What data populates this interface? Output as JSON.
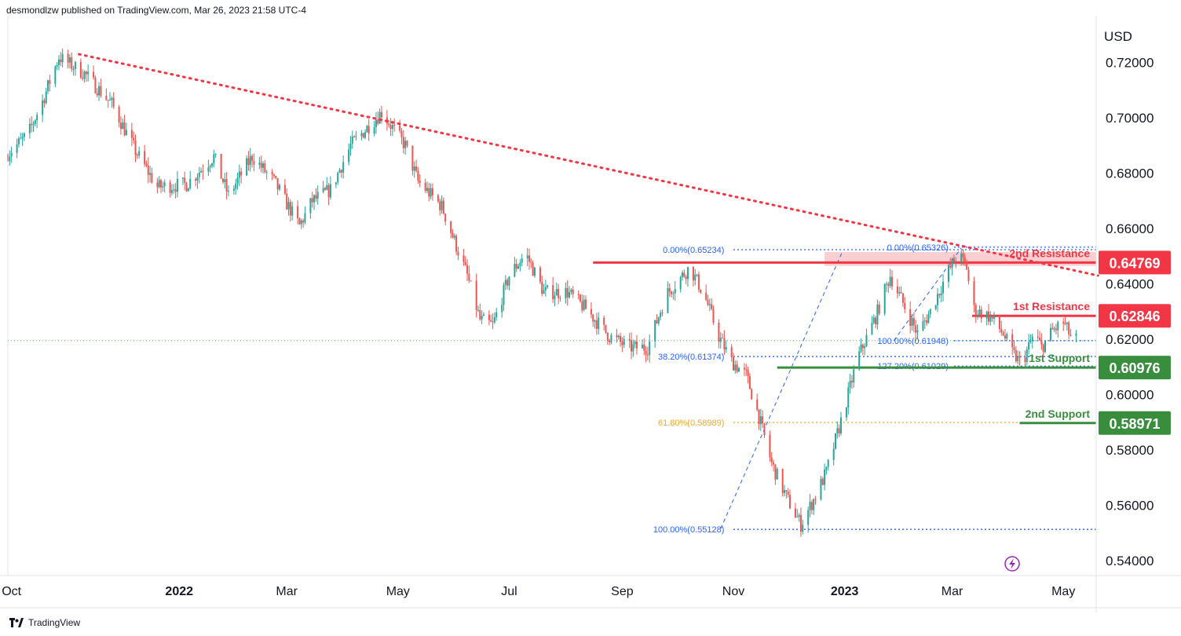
{
  "header": {
    "text": "desmondlzw published on TradingView.com, Mar 26, 2023 21:58 UTC-4"
  },
  "footer": {
    "brand": "TradingView"
  },
  "chart_data": {
    "type": "candlestick",
    "currency_label": "USD",
    "ylim": [
      0.5346,
      0.7369
    ],
    "y_ticks": [
      "0.72000",
      "0.70000",
      "0.68000",
      "0.66000",
      "0.64000",
      "0.62000",
      "0.60000",
      "0.58000",
      "0.56000",
      "0.54000"
    ],
    "x_ticks": [
      "Oct",
      "2022",
      "Mar",
      "May",
      "Jul",
      "Sep",
      "Nov",
      "2023",
      "Mar",
      "May"
    ],
    "x_tick_dates": [
      "2021-10-01",
      "2022-01-01",
      "2022-03-01",
      "2022-05-01",
      "2022-07-01",
      "2022-09-01",
      "2022-11-01",
      "2023-01-01",
      "2023-03-01",
      "2023-05-01"
    ],
    "x_range": [
      "2021-09-29",
      "2023-05-19"
    ],
    "colors": {
      "up": "#26a69a",
      "down": "#ef5350",
      "resistance": "#f23645",
      "support": "#388e3c",
      "fib": "#2962ff",
      "fib_golden": "#f5a623",
      "trendline": "#f23645",
      "zone": "#f8c7c9"
    },
    "price_path": [
      [
        "2021-09-29",
        0.687
      ],
      [
        "2021-10-10",
        0.694
      ],
      [
        "2021-10-18",
        0.706
      ],
      [
        "2021-10-27",
        0.722
      ],
      [
        "2021-11-10",
        0.716
      ],
      [
        "2021-11-25",
        0.705
      ],
      [
        "2021-12-08",
        0.688
      ],
      [
        "2021-12-20",
        0.675
      ],
      [
        "2022-01-05",
        0.676
      ],
      [
        "2022-01-20",
        0.686
      ],
      [
        "2022-01-28",
        0.672
      ],
      [
        "2022-02-10",
        0.686
      ],
      [
        "2022-02-22",
        0.677
      ],
      [
        "2022-03-08",
        0.661
      ],
      [
        "2022-03-15",
        0.67
      ],
      [
        "2022-03-25",
        0.674
      ],
      [
        "2022-04-05",
        0.69
      ],
      [
        "2022-04-15",
        0.697
      ],
      [
        "2022-04-22",
        0.702
      ],
      [
        "2022-05-05",
        0.69
      ],
      [
        "2022-05-12",
        0.677
      ],
      [
        "2022-05-25",
        0.668
      ],
      [
        "2022-06-08",
        0.643
      ],
      [
        "2022-06-15",
        0.627
      ],
      [
        "2022-06-22",
        0.625
      ],
      [
        "2022-07-01",
        0.643
      ],
      [
        "2022-07-10",
        0.651
      ],
      [
        "2022-07-20",
        0.637
      ],
      [
        "2022-08-02",
        0.637
      ],
      [
        "2022-08-12",
        0.631
      ],
      [
        "2022-08-25",
        0.621
      ],
      [
        "2022-09-05",
        0.617
      ],
      [
        "2022-09-15",
        0.617
      ],
      [
        "2022-09-25",
        0.636
      ],
      [
        "2022-10-08",
        0.646
      ],
      [
        "2022-10-16",
        0.636
      ],
      [
        "2022-10-24",
        0.621
      ],
      [
        "2022-10-31",
        0.612
      ],
      [
        "2022-11-08",
        0.607
      ],
      [
        "2022-11-15",
        0.592
      ],
      [
        "2022-11-22",
        0.575
      ],
      [
        "2022-11-30",
        0.563
      ],
      [
        "2022-12-08",
        0.553
      ],
      [
        "2022-12-15",
        0.562
      ],
      [
        "2022-12-22",
        0.572
      ],
      [
        "2023-01-01",
        0.595
      ],
      [
        "2023-01-08",
        0.613
      ],
      [
        "2023-01-18",
        0.628
      ],
      [
        "2023-01-26",
        0.643
      ],
      [
        "2023-02-02",
        0.633
      ],
      [
        "2023-02-10",
        0.622
      ],
      [
        "2023-02-17",
        0.63
      ],
      [
        "2023-02-25",
        0.642
      ],
      [
        "2023-03-04",
        0.651
      ],
      [
        "2023-03-09",
        0.646
      ],
      [
        "2023-03-12",
        0.631
      ],
      [
        "2023-03-22",
        0.628
      ],
      [
        "2023-03-29",
        0.622
      ],
      [
        "2023-04-03",
        0.615
      ],
      [
        "2023-04-08",
        0.611
      ],
      [
        "2023-04-15",
        0.622
      ],
      [
        "2023-04-19",
        0.617
      ],
      [
        "2023-04-25",
        0.623
      ],
      [
        "2023-05-01",
        0.626
      ],
      [
        "2023-05-05",
        0.621
      ],
      [
        "2023-05-08",
        0.62
      ]
    ],
    "last_price": 0.6195,
    "trendline": {
      "from": [
        "2021-11-07",
        0.723
      ],
      "to": [
        "2023-05-20",
        0.643
      ]
    },
    "resistance_zone": {
      "from": "2022-12-21",
      "low": 0.6465,
      "high": 0.6515
    },
    "levels": [
      {
        "name": "2nd Resistance",
        "value": 0.64769,
        "badge": "0.64769",
        "from": "2022-08-16",
        "kind": "resistance"
      },
      {
        "name": "1st Resistance",
        "value": 0.62846,
        "badge": "0.62846",
        "from": "2023-03-12",
        "kind": "resistance"
      },
      {
        "name": "1st Support",
        "value": 0.60976,
        "badge": "0.60976",
        "from": "2022-11-25",
        "kind": "support"
      },
      {
        "name": "2nd Support",
        "value": 0.58971,
        "badge": "0.58971",
        "from": "2023-04-07",
        "kind": "support"
      }
    ],
    "fib_levels": [
      {
        "label": "0.00%(0.65234)",
        "value": 0.65234,
        "label_end": "2022-10-27",
        "from": "2022-11-01",
        "color": "fib"
      },
      {
        "label": "38.20%(0.61374)",
        "value": 0.61374,
        "label_end": "2022-10-27",
        "from": "2022-11-01",
        "color": "fib"
      },
      {
        "label": "61.80%(0.58989)",
        "value": 0.58989,
        "label_end": "2022-10-27",
        "from": "2022-11-01",
        "color": "fib_golden"
      },
      {
        "label": "100.00%(0.55128)",
        "value": 0.55128,
        "label_end": "2022-10-27",
        "from": "2022-11-01",
        "color": "fib"
      },
      {
        "label": "0.00%(0.65326)",
        "value": 0.65326,
        "label_end": "2023-02-27",
        "from": "2023-03-02",
        "color": "fib"
      },
      {
        "label": "100.00%(0.61948)",
        "value": 0.61948,
        "label_end": "2023-02-27",
        "from": "2023-03-02",
        "color": "fib"
      },
      {
        "label": "127.20%(0.61029)",
        "value": 0.61029,
        "label_end": "2023-02-27",
        "from": "2023-03-02",
        "color": "fib"
      }
    ],
    "fib_diagonals": [
      {
        "from": [
          "2022-10-25",
          0.5515
        ],
        "to": [
          "2022-12-31",
          0.652
        ]
      },
      {
        "from": [
          "2023-01-28",
          0.6195
        ],
        "to": [
          "2023-03-06",
          0.653
        ]
      }
    ]
  }
}
